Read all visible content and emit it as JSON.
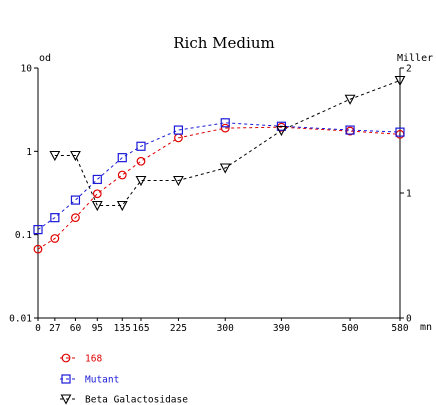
{
  "chart_data": {
    "type": "line",
    "title": "Rich Medium",
    "xlabel": "mn",
    "ylabel_left": "od",
    "ylabel_right": "Miller",
    "x_ticks": [
      0,
      27,
      60,
      95,
      135,
      165,
      225,
      300,
      390,
      500,
      580
    ],
    "x_tick_labels": [
      "0",
      "27",
      "60",
      "95",
      "135",
      "165",
      "225",
      "300",
      "390",
      "500",
      "580"
    ],
    "xlim": [
      0,
      580
    ],
    "ylim_left": [
      0.01,
      10
    ],
    "y_scale_left": "log",
    "y_ticks_left": [
      0.01,
      0.1,
      1,
      10
    ],
    "y_tick_labels_left": [
      "0.01",
      "0.1",
      "1",
      "10"
    ],
    "ylim_right": [
      0,
      2
    ],
    "y_ticks_right": [
      0,
      1,
      2
    ],
    "y_tick_labels_right": [
      "0",
      "1",
      "2"
    ],
    "grid": false,
    "legend_position": "bottom-left",
    "series": [
      {
        "name": "168",
        "axis": "left",
        "marker": "circle",
        "color": "#e00000",
        "x": [
          0,
          27,
          60,
          95,
          135,
          165,
          225,
          300,
          390,
          500,
          580
        ],
        "y": [
          0.067,
          0.09,
          0.16,
          0.31,
          0.52,
          0.76,
          1.45,
          1.9,
          1.95,
          1.75,
          1.6
        ]
      },
      {
        "name": "Mutant",
        "axis": "left",
        "marker": "square",
        "color": "#1a1ad8",
        "x": [
          0,
          27,
          60,
          95,
          135,
          165,
          225,
          300,
          390,
          500,
          580
        ],
        "y": [
          0.115,
          0.16,
          0.26,
          0.46,
          0.84,
          1.15,
          1.8,
          2.2,
          2.0,
          1.8,
          1.7
        ]
      },
      {
        "name": "Beta Galactosidase",
        "axis": "right",
        "marker": "triangle-down",
        "color": "#000000",
        "x": [
          27,
          60,
          95,
          135,
          165,
          225,
          300,
          390,
          500,
          580
        ],
        "y": [
          1.3,
          1.3,
          0.9,
          0.9,
          1.1,
          1.1,
          1.2,
          1.5,
          1.75,
          1.9
        ]
      }
    ]
  }
}
